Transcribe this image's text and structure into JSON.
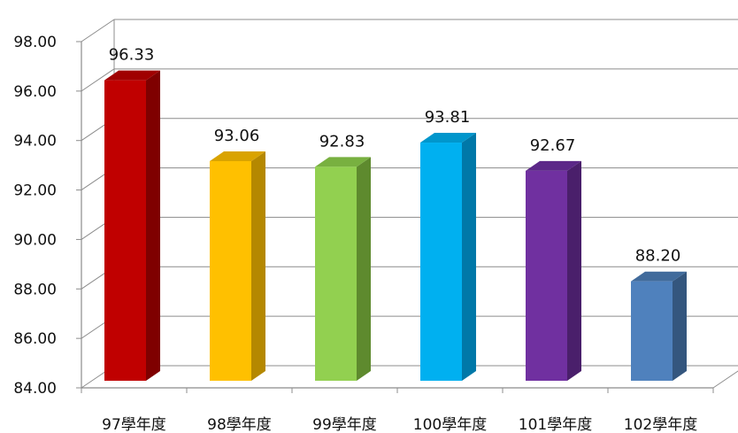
{
  "chart_data": {
    "type": "bar",
    "categories": [
      "97學年度",
      "98學年度",
      "99學年度",
      "100學年度",
      "101學年度",
      "102學年度"
    ],
    "values": [
      96.33,
      93.06,
      92.83,
      93.81,
      92.67,
      88.2
    ],
    "value_labels": [
      "96.33",
      "93.06",
      "92.83",
      "93.81",
      "92.67",
      "88.20"
    ],
    "y_ticks": [
      "84.00",
      "86.00",
      "88.00",
      "90.00",
      "92.00",
      "94.00",
      "96.00",
      "98.00"
    ],
    "ylim": [
      84,
      98
    ],
    "grid": true,
    "style": "3d-column",
    "colors": {
      "front": [
        "#C00000",
        "#FFC000",
        "#92D050",
        "#00B0F0",
        "#7030A0",
        "#4F81BD"
      ],
      "side": [
        "#7F0000",
        "#B58800",
        "#5E8A2E",
        "#0078A8",
        "#4A1F6B",
        "#34567E"
      ],
      "top": [
        "#A00000",
        "#D9A300",
        "#78B040",
        "#0096CC",
        "#5C2888",
        "#416B9C"
      ],
      "grid": "#8C8C8C",
      "axis": "#8C8C8C"
    }
  }
}
